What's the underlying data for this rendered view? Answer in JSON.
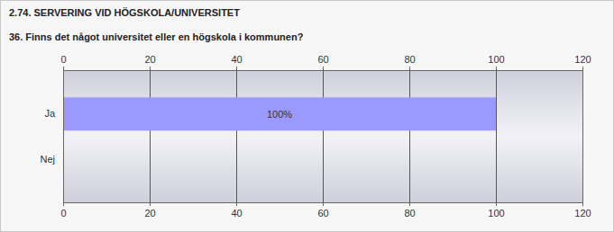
{
  "chart_data": {
    "type": "bar",
    "orientation": "horizontal",
    "title": "2.74. SERVERING VID HÖGSKOLA/UNIVERSITET",
    "subtitle": "36. Finns det något universitet eller en högskola i kommunen?",
    "categories": [
      "Ja",
      "Nej"
    ],
    "values": [
      100,
      0
    ],
    "value_labels": [
      "100%",
      null
    ],
    "data_labels": true,
    "color": "#9999ff",
    "xlim": [
      0,
      120
    ],
    "xticks": [
      0,
      20,
      40,
      60,
      80,
      100,
      120
    ],
    "grid": true
  }
}
